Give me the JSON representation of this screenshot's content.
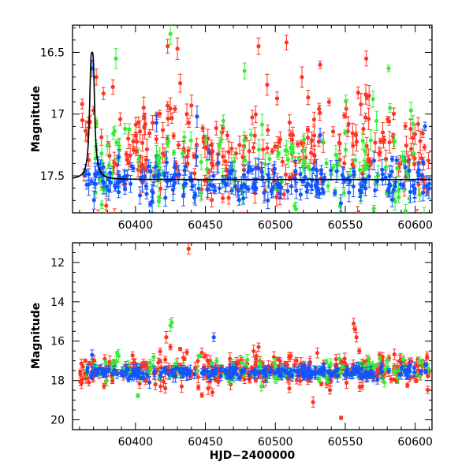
{
  "colors": {
    "red": "#ff3322",
    "green": "#33ee33",
    "blue": "#1155ff",
    "model": "#000000"
  },
  "chart_data": [
    {
      "type": "scatter",
      "id": "top",
      "title": "",
      "xlabel": "",
      "ylabel": "Magnitude",
      "xlim": [
        60355,
        60612
      ],
      "ylim": [
        17.8,
        16.28
      ],
      "y_inverted": true,
      "xticks": [
        60400,
        60450,
        60500,
        60550,
        60600
      ],
      "yticks": [
        16.5,
        17,
        17.5
      ],
      "yticklabels": [
        "16.5",
        "17",
        "17.5"
      ],
      "error_bars": true,
      "model_curve": {
        "peak_x": 60369,
        "peak_mag": 16.5,
        "baseline_mag": 17.53,
        "width_days": 1.5
      },
      "series": [
        {
          "color": "red",
          "n": 260,
          "center": 17.28,
          "spread": 0.2,
          "x_start": 60360,
          "x_end": 60610,
          "extra": [
            [
              60362,
              17.05
            ],
            [
              60370,
              16.97
            ],
            [
              60372,
              16.7
            ],
            [
              60423,
              16.45
            ],
            [
              60430,
              16.47
            ],
            [
              60432,
              16.75
            ],
            [
              60488,
              16.45
            ],
            [
              60508,
              16.42
            ],
            [
              60519,
              16.7
            ],
            [
              60532,
              16.6
            ],
            [
              60565,
              16.55
            ],
            [
              60567,
              16.85
            ]
          ]
        },
        {
          "color": "green",
          "n": 140,
          "center": 17.42,
          "spread": 0.18,
          "x_start": 60362,
          "x_end": 60610,
          "extra": [
            [
              60386,
              16.55
            ],
            [
              60425,
              16.35
            ],
            [
              60478,
              16.65
            ],
            [
              60581,
              16.63
            ],
            [
              60582,
              16.95
            ],
            [
              60597,
              16.97
            ]
          ]
        },
        {
          "color": "blue",
          "n": 230,
          "center": 17.55,
          "spread": 0.08,
          "x_start": 60362,
          "x_end": 60610,
          "extra": [
            [
              60369,
              16.63
            ],
            [
              60415,
              17.07
            ],
            [
              60444,
              17.02
            ],
            [
              60532,
              17.17
            ],
            [
              60607,
              17.1
            ]
          ]
        }
      ]
    },
    {
      "type": "scatter",
      "id": "bottom",
      "title": "",
      "xlabel": "HJD−2400000",
      "ylabel": "Magnitude",
      "xlim": [
        60355,
        60612
      ],
      "ylim": [
        20.5,
        11
      ],
      "y_inverted": true,
      "xticks": [
        60400,
        60450,
        60500,
        60550,
        60600
      ],
      "yticks": [
        12,
        14,
        16,
        18,
        20
      ],
      "yticklabels": [
        "12",
        "14",
        "16",
        "18",
        "20"
      ],
      "error_bars": true,
      "series": [
        {
          "color": "red",
          "n": 330,
          "center": 17.45,
          "spread": 0.35,
          "x_start": 60360,
          "x_end": 60610,
          "extra": [
            [
              60438,
              11.3
            ],
            [
              60422,
              15.8
            ],
            [
              60425,
              16.3
            ],
            [
              60432,
              16.4
            ],
            [
              60488,
              16.3
            ],
            [
              60530,
              16.6
            ],
            [
              60556,
              15.1
            ],
            [
              60557,
              15.4
            ],
            [
              60558,
              15.8
            ],
            [
              60560,
              16.5
            ],
            [
              60527,
              19.1
            ],
            [
              60547,
              19.9
            ],
            [
              60455,
              18.6
            ],
            [
              60452,
              18.4
            ],
            [
              60418,
              18.3
            ],
            [
              60433,
              18.3
            ],
            [
              60468,
              18.2
            ],
            [
              60510,
              18.4
            ],
            [
              60538,
              18.1
            ]
          ]
        },
        {
          "color": "green",
          "n": 120,
          "center": 17.5,
          "spread": 0.3,
          "x_start": 60362,
          "x_end": 60610,
          "extra": [
            [
              60425,
              15.2
            ],
            [
              60426,
              15.05
            ],
            [
              60387,
              16.6
            ],
            [
              60413,
              16.8
            ],
            [
              60480,
              16.95
            ],
            [
              60490,
              18.3
            ],
            [
              60578,
              18.1
            ]
          ]
        },
        {
          "color": "blue",
          "n": 230,
          "center": 17.58,
          "spread": 0.12,
          "x_start": 60362,
          "x_end": 60610,
          "extra": [
            [
              60456,
              15.8
            ],
            [
              60395,
              17.95
            ],
            [
              60410,
              18.1
            ],
            [
              60573,
              17.95
            ],
            [
              60369,
              16.7
            ]
          ]
        }
      ]
    }
  ]
}
